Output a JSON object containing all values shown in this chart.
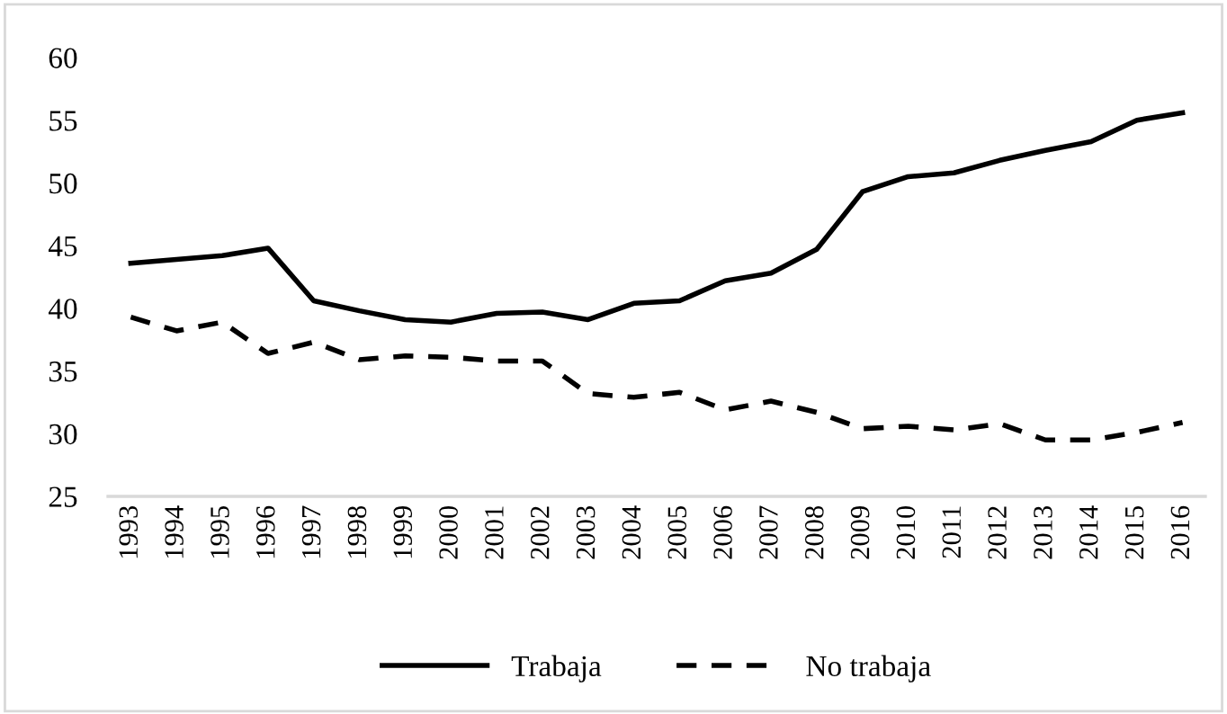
{
  "chart_data": {
    "type": "line",
    "categories": [
      "1993",
      "1994",
      "1995",
      "1996",
      "1997",
      "1998",
      "1999",
      "2000",
      "2001",
      "2002",
      "2003",
      "2004",
      "2005",
      "2006",
      "2007",
      "2008",
      "2009",
      "2010",
      "2011",
      "2012",
      "2013",
      "2014",
      "2015",
      "2016"
    ],
    "series": [
      {
        "name": "Trabaja",
        "color": "#000000",
        "line_style": "solid",
        "values": [
          43.6,
          43.9,
          44.2,
          44.8,
          40.6,
          39.8,
          39.1,
          38.9,
          39.6,
          39.7,
          39.1,
          40.4,
          40.6,
          42.2,
          42.8,
          44.7,
          49.3,
          50.5,
          50.8,
          51.8,
          52.6,
          53.3,
          55.0,
          55.6
        ]
      },
      {
        "name": "No trabaja",
        "color": "#000000",
        "line_style": "dashed",
        "values": [
          39.3,
          38.2,
          38.9,
          36.4,
          37.3,
          35.9,
          36.2,
          36.1,
          35.8,
          35.8,
          33.2,
          32.9,
          33.3,
          31.9,
          32.6,
          31.7,
          30.4,
          30.6,
          30.3,
          30.8,
          29.5,
          29.5,
          30.1,
          30.9
        ]
      }
    ],
    "ylim": [
      25,
      60
    ],
    "yticks": [
      25,
      30,
      35,
      40,
      45,
      50,
      55,
      60
    ],
    "grid": false,
    "legend": "bottom",
    "marker": "none"
  }
}
